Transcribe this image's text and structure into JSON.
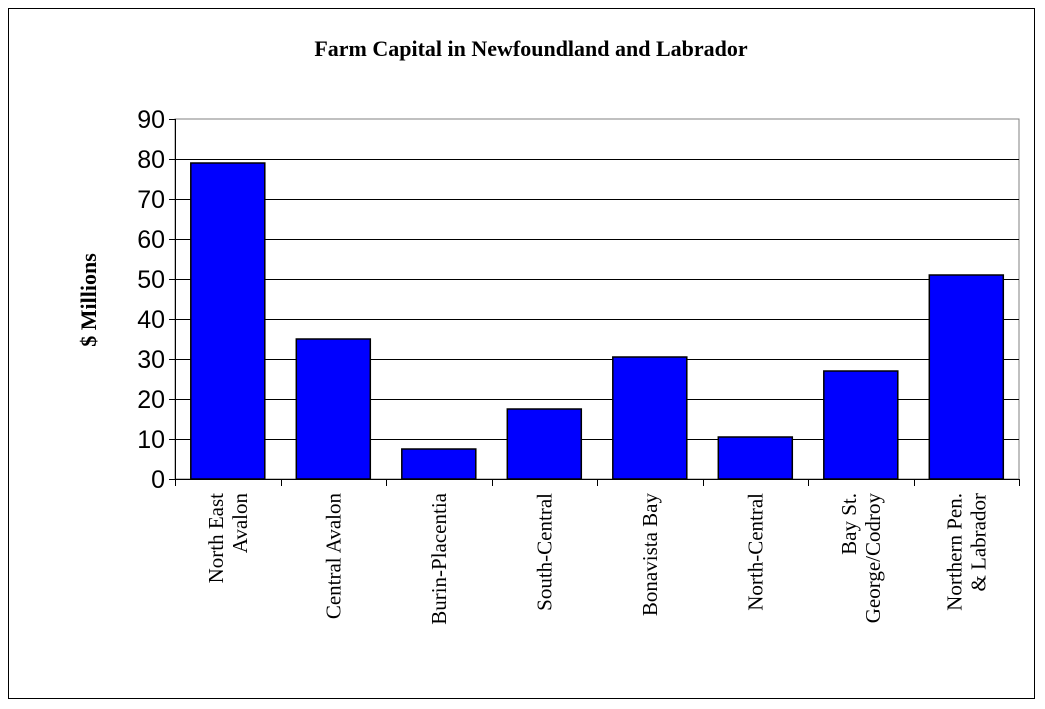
{
  "chart_data": {
    "type": "bar",
    "title": "Farm Capital in Newfoundland and Labrador",
    "xlabel": "",
    "ylabel": "$ Millions",
    "ylim": [
      0,
      90
    ],
    "yticks": [
      "0",
      "10",
      "20",
      "30",
      "40",
      "50",
      "60",
      "70",
      "80",
      "90"
    ],
    "grid": true,
    "legend": "none",
    "categories": [
      [
        "North East",
        "Avalon"
      ],
      [
        "Central Avalon"
      ],
      [
        "Burin-Placentia"
      ],
      [
        "South-Central"
      ],
      [
        "Bonavista Bay"
      ],
      [
        "North-Central"
      ],
      [
        "Bay St.",
        "George/Codroy"
      ],
      [
        "Northern Pen.",
        "& Labrador"
      ]
    ],
    "values": [
      79,
      35,
      7.5,
      17.5,
      30.5,
      10.5,
      27,
      51
    ],
    "colors": {
      "bar": "#0000ff",
      "bar_edge": "#000000",
      "plot_border": "#808080",
      "gridline": "#000000"
    }
  }
}
